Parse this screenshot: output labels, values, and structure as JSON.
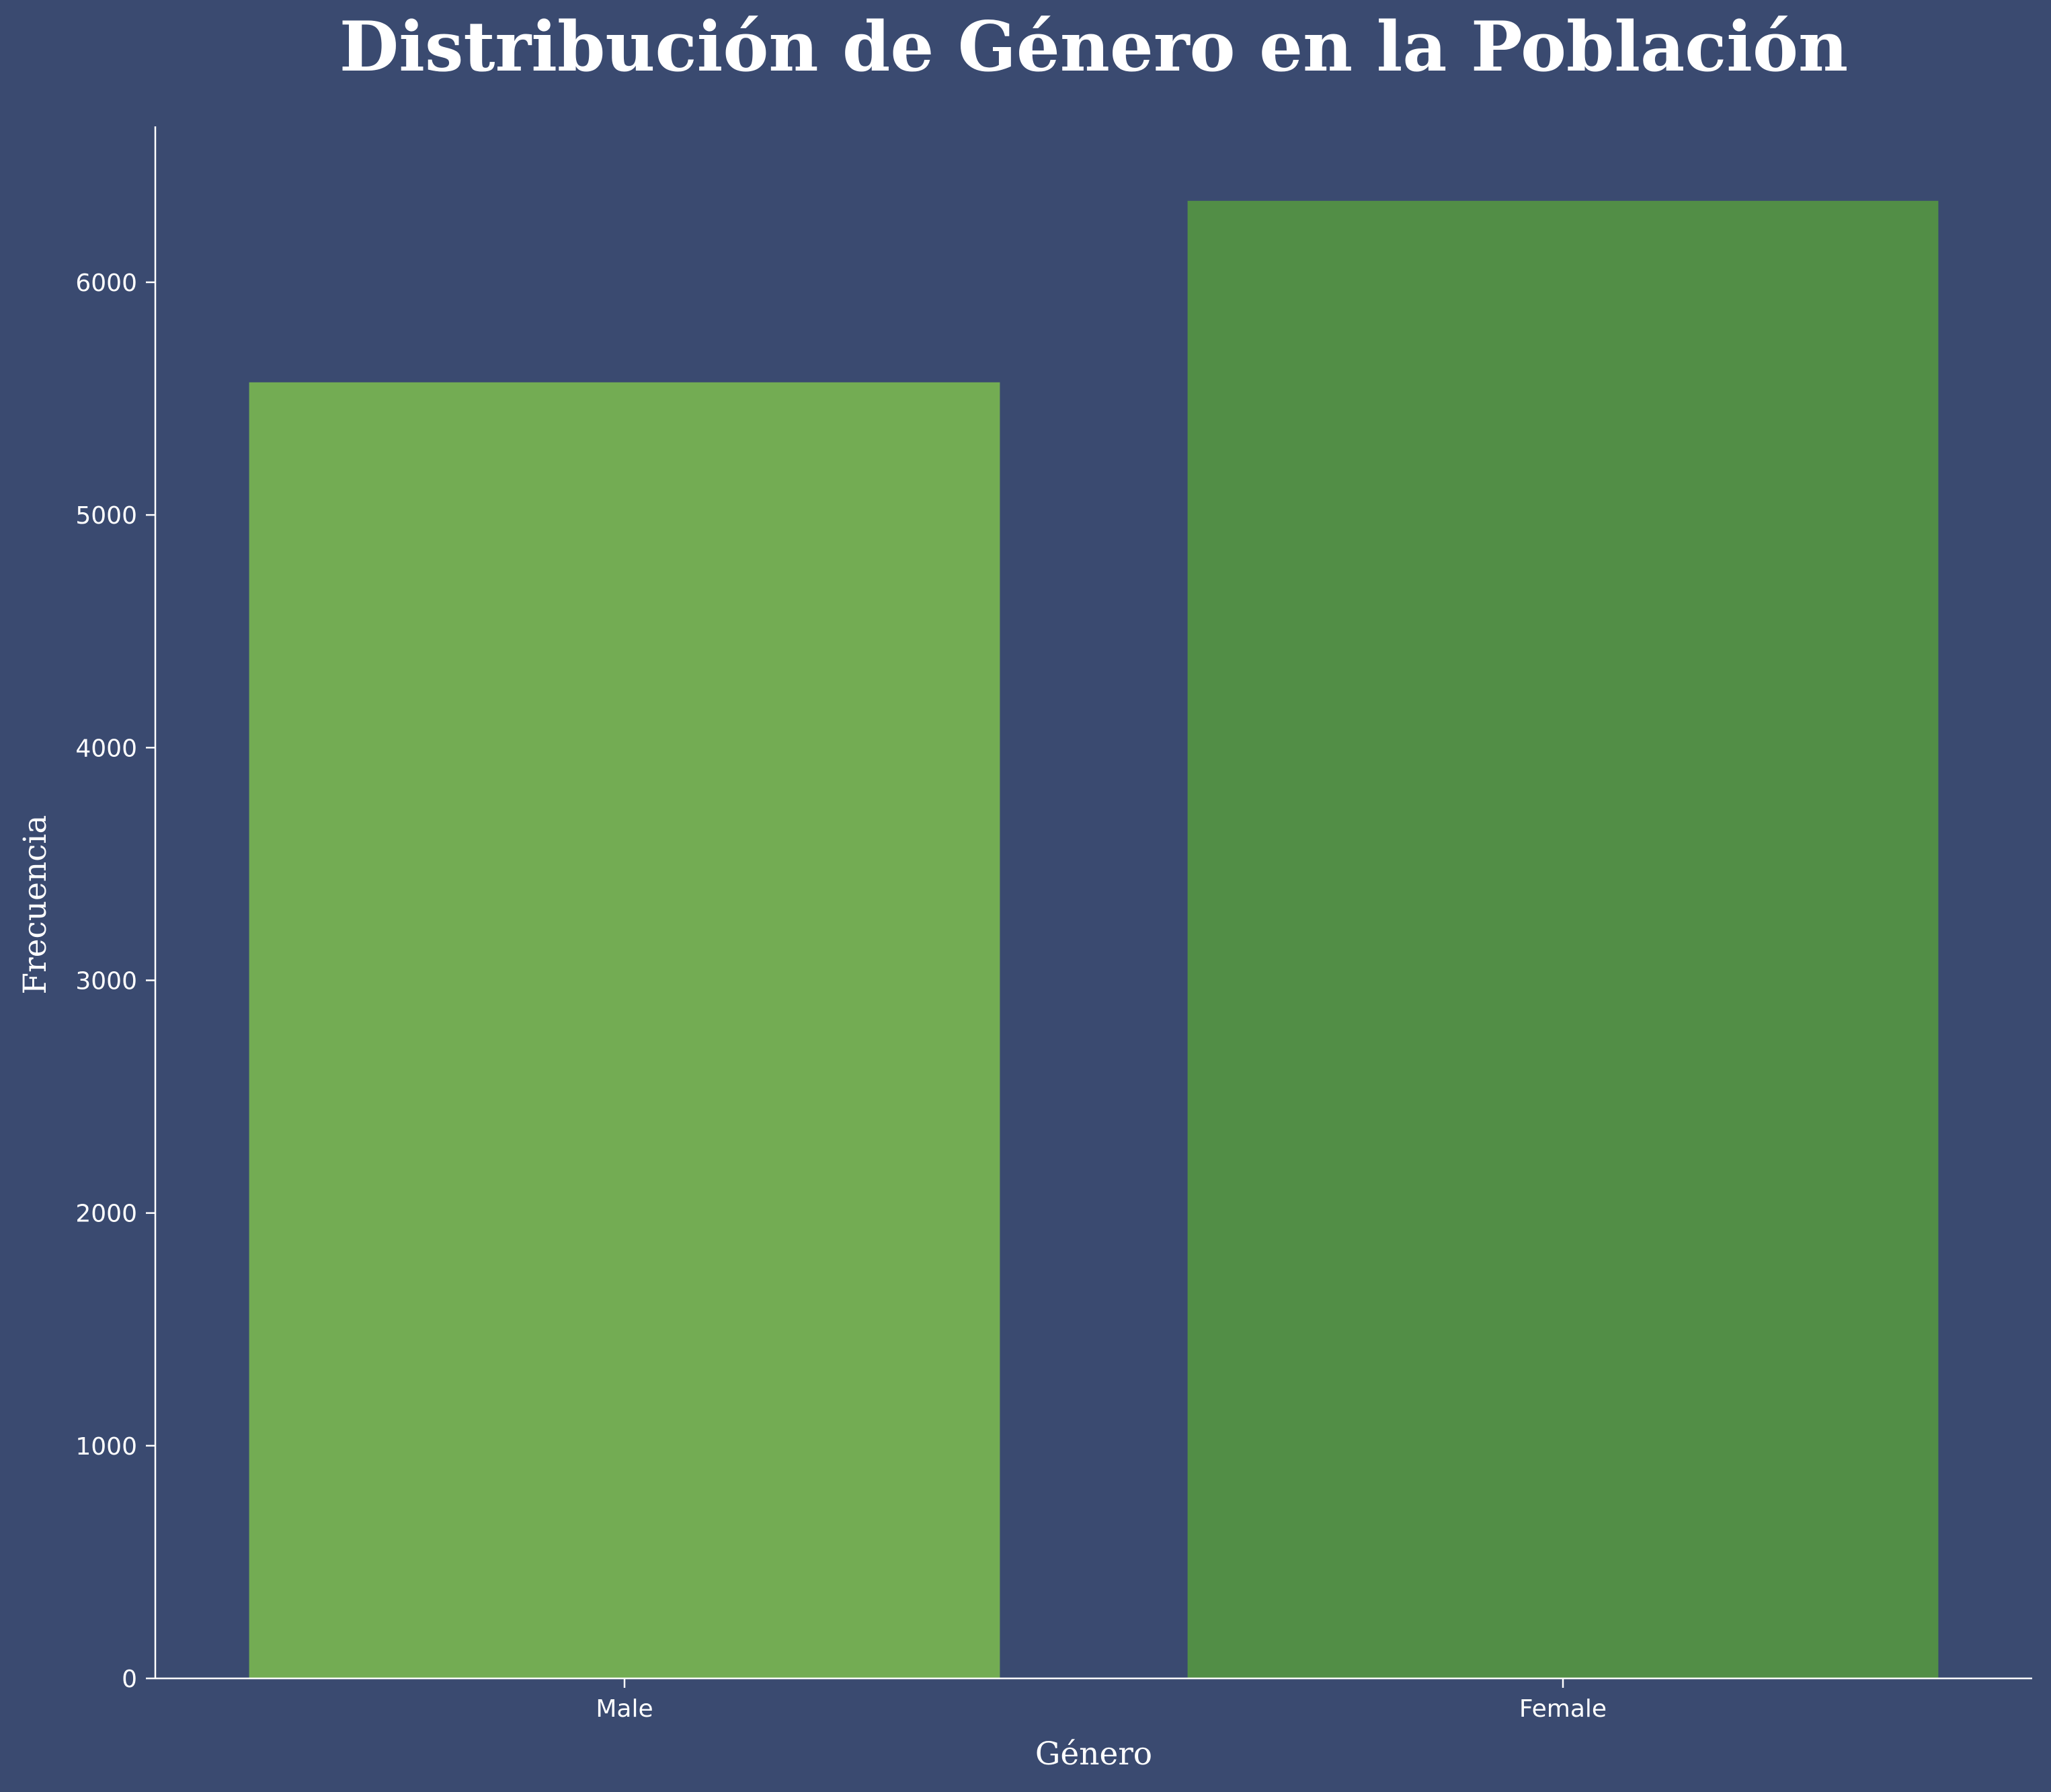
{
  "chart_data": {
    "type": "bar",
    "title": "Distribución de Género en la Población",
    "xlabel": "Género",
    "ylabel": "Frecuencia",
    "categories": [
      "Male",
      "Female"
    ],
    "values": [
      5570,
      6350
    ],
    "ylim": [
      0,
      6670
    ],
    "yticks": [
      0,
      1000,
      2000,
      3000,
      4000,
      5000,
      6000
    ],
    "grid": false,
    "legend": "none",
    "colors": {
      "background": "#3a4a70",
      "axis": "#ffffff",
      "text": "#ffffff",
      "bars": [
        "#73ac53",
        "#528e46"
      ]
    }
  }
}
